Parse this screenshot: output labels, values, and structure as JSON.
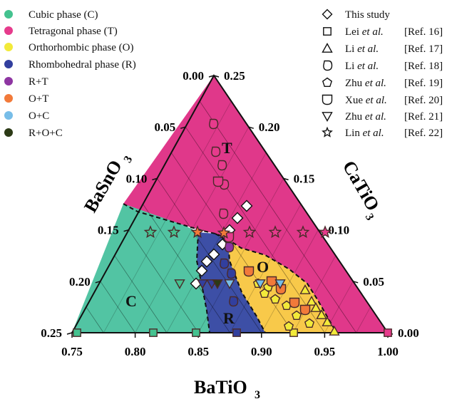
{
  "chart_data": {
    "type": "ternary-phase-diagram",
    "axes": {
      "bottom": {
        "title_main": "BaTiO",
        "title_sub": "3",
        "range": [
          0.75,
          1.0
        ],
        "ticks": [
          "0.75",
          "0.80",
          "0.85",
          "0.90",
          "0.95",
          "1.00"
        ]
      },
      "left": {
        "title_main": "BaSnO",
        "title_sub": "3",
        "range": [
          0.0,
          0.25
        ],
        "ticks": [
          "0.00",
          "0.05",
          "0.10",
          "0.15",
          "0.20",
          "0.25"
        ]
      },
      "right": {
        "title_main": "CaTiO",
        "title_sub": "3",
        "range": [
          0.0,
          0.25
        ],
        "ticks": [
          "0.25",
          "0.20",
          "0.15",
          "0.10",
          "0.05",
          "0.00"
        ]
      }
    },
    "phase_regions": [
      {
        "key": "T",
        "label": "T",
        "color": "#e0388a"
      },
      {
        "key": "C",
        "label": "C",
        "color": "#52c4a3"
      },
      {
        "key": "R",
        "label": "R",
        "color": "#3d4fa6"
      },
      {
        "key": "O",
        "label": "O",
        "color": "#f8c94a"
      }
    ],
    "phase_legend": [
      {
        "label": "Cubic phase  (C)",
        "color": "#44c28f"
      },
      {
        "label": "Tetragonal  phase  (T)",
        "color": "#e63b8c"
      },
      {
        "label": "Orthorhombic phase  (O)",
        "color": "#f2ea3a"
      },
      {
        "label": "Rhombohedral phase  (R)",
        "color": "#323f9e"
      },
      {
        "label": "R+T",
        "color": "#8e35a2"
      },
      {
        "label": "O+T",
        "color": "#f27a3a"
      },
      {
        "label": "O+C",
        "color": "#77bde8"
      },
      {
        "label": "R+O+C",
        "color": "#2c3a16"
      }
    ],
    "source_legend": [
      {
        "marker": "diamond",
        "name": "This study",
        "ref": ""
      },
      {
        "marker": "square",
        "name": "Lei",
        "etal": "et al.",
        "ref": "[Ref. 16]"
      },
      {
        "marker": "triangle-up",
        "name": "Li",
        "etal": "et al.",
        "ref": "[Ref. 17]"
      },
      {
        "marker": "drop",
        "name": "Li",
        "etal": "et al.",
        "ref": "[Ref. 18]"
      },
      {
        "marker": "pentagon",
        "name": "Zhu",
        "etal": "et al.",
        "ref": "[Ref. 19]"
      },
      {
        "marker": "shield",
        "name": "Xue",
        "etal": "et al.",
        "ref": "[Ref. 20]"
      },
      {
        "marker": "triangle-down",
        "name": "Zhu",
        "etal": "et al.",
        "ref": "[Ref. 21]"
      },
      {
        "marker": "star",
        "name": "Lin",
        "etal": "et al.",
        "ref": "[Ref. 22]"
      }
    ],
    "points": [
      {
        "marker": "diamond",
        "phase": "O+T",
        "bt": 0.88,
        "bs": 0.082
      },
      {
        "marker": "diamond",
        "phase": "O+T",
        "bt": 0.88,
        "bs": 0.092
      },
      {
        "marker": "diamond",
        "phase": "O+T",
        "bt": 0.878,
        "bs": 0.1
      },
      {
        "marker": "diamond",
        "phase": "O+T",
        "bt": 0.873,
        "bs": 0.11
      },
      {
        "marker": "diamond",
        "phase": "O+T",
        "bt": 0.868,
        "bs": 0.12
      },
      {
        "marker": "diamond",
        "phase": "O+T",
        "bt": 0.858,
        "bs": 0.13
      },
      {
        "marker": "diamond",
        "phase": "O+T",
        "bt": 0.857,
        "bs": 0.14
      },
      {
        "marker": "diamond",
        "phase": "O+T",
        "bt": 0.853,
        "bs": 0.147
      },
      {
        "marker": "square",
        "phase": "C",
        "bt": 0.76,
        "bs": 0.24
      },
      {
        "marker": "square",
        "phase": "C",
        "bt": 0.82,
        "bs": 0.18
      },
      {
        "marker": "square",
        "phase": "C",
        "bt": 0.86,
        "bs": 0.14
      },
      {
        "marker": "square",
        "phase": "R",
        "bt": 0.9,
        "bs": 0.1
      },
      {
        "marker": "square",
        "phase": "O",
        "bt": 0.94,
        "bs": 0.06
      },
      {
        "marker": "square",
        "phase": "T",
        "bt": 1.0,
        "bs": 0.0
      },
      {
        "marker": "triangle-up",
        "phase": "O",
        "bt": 0.91,
        "bs": 0.04
      },
      {
        "marker": "triangle-up",
        "phase": "O",
        "bt": 0.92,
        "bs": 0.028
      },
      {
        "marker": "triangle-up",
        "phase": "O",
        "bt": 0.93,
        "bs": 0.016
      },
      {
        "marker": "triangle-up",
        "phase": "O",
        "bt": 0.94,
        "bs": 0.004
      },
      {
        "marker": "triangle-up",
        "phase": "O",
        "bt": 0.95,
        "bs": 0.0
      },
      {
        "marker": "triangle-up",
        "phase": "O",
        "bt": 0.96,
        "bs": 0.0
      },
      {
        "marker": "drop",
        "phase": "T",
        "bt": 0.78,
        "bs": 0.04
      },
      {
        "marker": "drop",
        "phase": "T",
        "bt": 0.79,
        "bs": 0.06
      },
      {
        "marker": "drop",
        "phase": "T",
        "bt": 0.81,
        "bs": 0.08
      },
      {
        "marker": "drop",
        "phase": "T",
        "bt": 0.825,
        "bs": 0.1
      },
      {
        "marker": "drop",
        "phase": "T",
        "bt": 0.84,
        "bs": 0.12
      },
      {
        "marker": "drop",
        "phase": "R+T",
        "bt": 0.845,
        "bs": 0.145
      },
      {
        "marker": "drop",
        "phase": "R",
        "bt": 0.86,
        "bs": 0.155
      },
      {
        "marker": "drop",
        "phase": "R",
        "bt": 0.875,
        "bs": 0.158
      },
      {
        "marker": "drop",
        "phase": "R",
        "bt": 0.88,
        "bs": 0.175
      },
      {
        "marker": "pentagon",
        "phase": "O",
        "bt": 0.89,
        "bs": 0.068
      },
      {
        "marker": "pentagon",
        "phase": "O",
        "bt": 0.9,
        "bs": 0.06
      },
      {
        "marker": "pentagon",
        "phase": "O",
        "bt": 0.91,
        "bs": 0.052
      },
      {
        "marker": "pentagon",
        "phase": "O",
        "bt": 0.92,
        "bs": 0.044
      },
      {
        "marker": "pentagon",
        "phase": "O",
        "bt": 0.93,
        "bs": 0.034
      },
      {
        "marker": "pentagon",
        "phase": "O",
        "bt": 0.94,
        "bs": 0.028
      },
      {
        "marker": "pentagon",
        "phase": "O",
        "bt": 0.945,
        "bs": 0.02
      },
      {
        "marker": "pentagon",
        "phase": "O",
        "bt": 0.95,
        "bs": 0.012
      },
      {
        "marker": "shield",
        "phase": "T",
        "bt": 0.77,
        "bs": 0.05
      },
      {
        "marker": "shield",
        "phase": "T",
        "bt": 0.8,
        "bs": 0.07
      },
      {
        "marker": "shield",
        "phase": "O+T",
        "bt": 0.89,
        "bs": 0.07
      },
      {
        "marker": "shield",
        "phase": "O+T",
        "bt": 0.905,
        "bs": 0.058
      },
      {
        "marker": "shield",
        "phase": "O+T",
        "bt": 0.915,
        "bs": 0.048
      },
      {
        "marker": "shield",
        "phase": "O+T",
        "bt": 0.925,
        "bs": 0.04
      },
      {
        "marker": "shield",
        "phase": "O+T",
        "bt": 0.935,
        "bs": 0.03
      },
      {
        "marker": "triangle-down",
        "phase": "C",
        "bt": 0.81,
        "bs": 0.16
      },
      {
        "marker": "triangle-down",
        "phase": "R",
        "bt": 0.835,
        "bs": 0.16
      },
      {
        "marker": "triangle-down",
        "phase": "R",
        "bt": 0.84,
        "bs": 0.16
      },
      {
        "marker": "triangle-down",
        "phase": "R+O+C",
        "bt": 0.845,
        "bs": 0.16
      },
      {
        "marker": "triangle-down",
        "phase": "O+C",
        "bt": 0.85,
        "bs": 0.16
      },
      {
        "marker": "triangle-down",
        "phase": "O+C",
        "bt": 0.855,
        "bs": 0.16
      },
      {
        "marker": "triangle-down",
        "phase": "O+C",
        "bt": 0.88,
        "bs": 0.12
      },
      {
        "marker": "star",
        "phase": "C",
        "bt": 0.77,
        "bs": 0.13
      },
      {
        "marker": "star",
        "phase": "C",
        "bt": 0.79,
        "bs": 0.12
      },
      {
        "marker": "star",
        "phase": "O+T",
        "bt": 0.81,
        "bs": 0.11
      },
      {
        "marker": "star",
        "phase": "O+T",
        "bt": 0.83,
        "bs": 0.1
      },
      {
        "marker": "star",
        "phase": "T",
        "bt": 0.86,
        "bs": 0.08
      },
      {
        "marker": "star",
        "phase": "T",
        "bt": 0.88,
        "bs": 0.06
      },
      {
        "marker": "star",
        "phase": "T",
        "bt": 0.9,
        "bs": 0.04
      },
      {
        "marker": "star",
        "phase": "T",
        "bt": 0.92,
        "bs": 0.02
      }
    ]
  }
}
